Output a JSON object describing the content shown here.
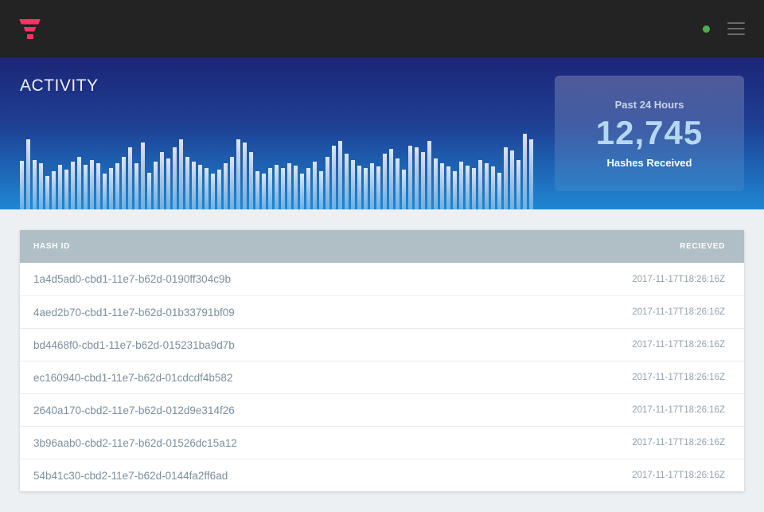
{
  "header": {
    "logo_color": "#fb3264",
    "status_dot_color": "#4caf50"
  },
  "hero": {
    "title": "ACTIVITY",
    "stat_card": {
      "period_label": "Past 24 Hours",
      "value": "12,745",
      "metric_label": "Hashes Received"
    }
  },
  "chart_data": {
    "type": "bar",
    "title": "",
    "xlabel": "",
    "ylabel": "",
    "ylim": [
      0,
      95
    ],
    "gridlines": false,
    "axes_visible": false,
    "bar_color": "rgba(255,255,255,0.6)",
    "values": [
      61,
      88,
      62,
      58,
      42,
      48,
      56,
      50,
      60,
      66,
      56,
      62,
      58,
      45,
      52,
      58,
      66,
      78,
      58,
      84,
      46,
      60,
      72,
      64,
      78,
      88,
      66,
      60,
      56,
      52,
      45,
      50,
      58,
      66,
      88,
      84,
      72,
      48,
      45,
      52,
      56,
      52,
      58,
      55,
      45,
      52,
      60,
      48,
      66,
      80,
      86,
      70,
      62,
      55,
      52,
      58,
      54,
      70,
      76,
      64,
      50,
      80,
      78,
      72,
      86,
      64,
      58,
      54,
      48,
      60,
      55,
      52,
      62,
      58,
      54,
      46,
      78,
      74,
      62,
      95,
      88
    ]
  },
  "table": {
    "columns": [
      "HASH ID",
      "RECIEVED"
    ],
    "rows": [
      {
        "hash_id": "1a4d5ad0-cbd1-11e7-b62d-0190ff304c9b",
        "received": "2017-11-17T18:26:16Z"
      },
      {
        "hash_id": "4aed2b70-cbd1-11e7-b62d-01b33791bf09",
        "received": "2017-11-17T18:26:16Z"
      },
      {
        "hash_id": "bd4468f0-cbd1-11e7-b62d-015231ba9d7b",
        "received": "2017-11-17T18:26:16Z"
      },
      {
        "hash_id": "ec160940-cbd1-11e7-b62d-01cdcdf4b582",
        "received": "2017-11-17T18:26:16Z"
      },
      {
        "hash_id": "2640a170-cbd2-11e7-b62d-012d9e314f26",
        "received": "2017-11-17T18:26:16Z"
      },
      {
        "hash_id": "3b96aab0-cbd2-11e7-b62d-01526dc15a12",
        "received": "2017-11-17T18:26:16Z"
      },
      {
        "hash_id": "54b41c30-cbd2-11e7-b62d-0144fa2ff6ad",
        "received": "2017-11-17T18:26:16Z"
      }
    ]
  },
  "colors": {
    "header_bg": "#232323",
    "hero_gradient_top": "#1c2577",
    "hero_gradient_bottom": "#1e87d3",
    "table_header_bg": "#b0bec5",
    "page_bg": "#edf0f3",
    "accent_pink": "#fb3264",
    "status_green": "#4caf50"
  }
}
